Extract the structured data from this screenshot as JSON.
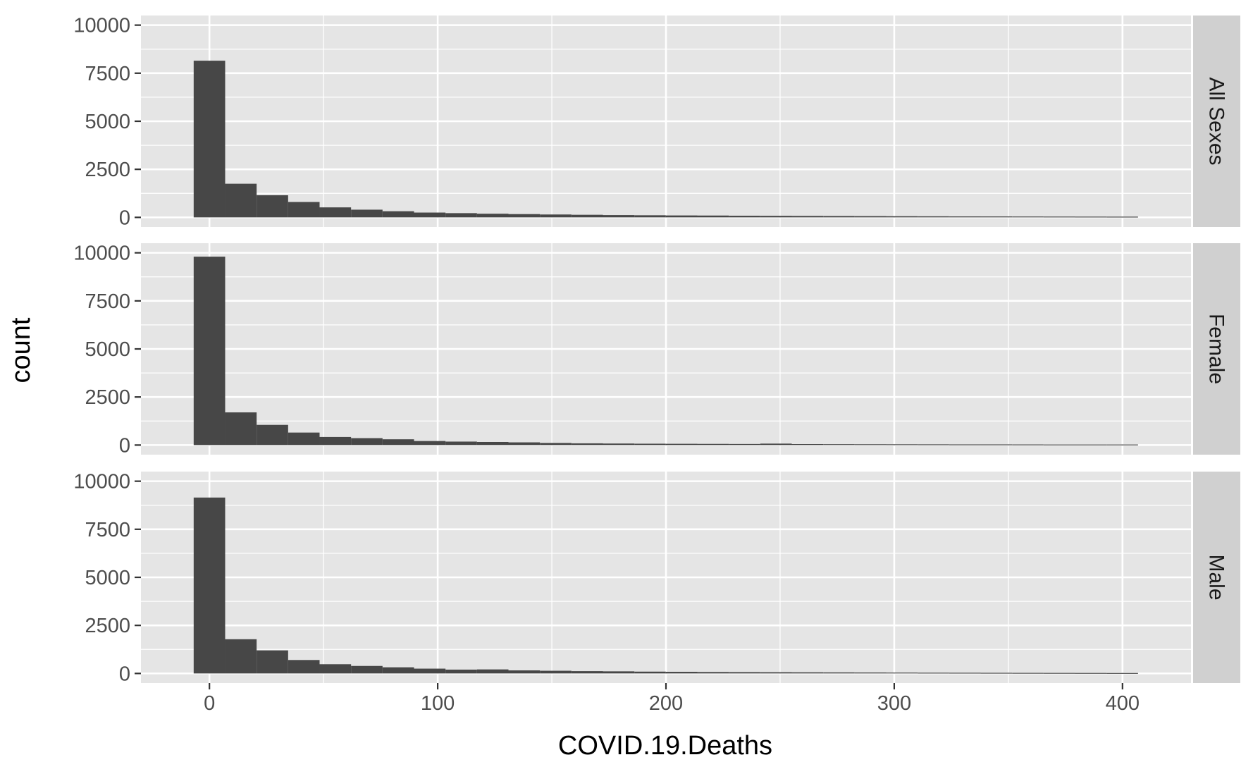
{
  "chart_data": {
    "type": "bar",
    "subtype": "faceted-histogram",
    "facet_direction": "rows",
    "xlabel": "COVID.19.Deaths",
    "ylabel": "count",
    "xlim": [
      -30,
      430
    ],
    "ylim": [
      -500,
      10500
    ],
    "x_ticks": [
      0,
      100,
      200,
      300,
      400
    ],
    "x_tick_labels": [
      "0",
      "100",
      "200",
      "300",
      "400"
    ],
    "y_ticks": [
      0,
      2500,
      5000,
      7500,
      10000
    ],
    "y_tick_labels": [
      "0",
      "2500",
      "5000",
      "7500",
      "10000"
    ],
    "grid": true,
    "bin_width": 13.79,
    "bin_start": -6.9,
    "colors": {
      "panel_background": "#e5e5e5",
      "grid_major": "#ffffff",
      "bar_fill": "#474747",
      "strip_background": "#d0d0d0",
      "tick_color": "#333333"
    },
    "facets": [
      {
        "label": "All Sexes",
        "values": [
          8150,
          1750,
          1150,
          800,
          520,
          400,
          320,
          250,
          220,
          190,
          170,
          150,
          135,
          120,
          110,
          100,
          95,
          85,
          80,
          75,
          70,
          65,
          60,
          55,
          50,
          48,
          45,
          42,
          40,
          38
        ]
      },
      {
        "label": "Female",
        "values": [
          9800,
          1700,
          1050,
          650,
          420,
          360,
          300,
          210,
          180,
          160,
          140,
          110,
          90,
          80,
          70,
          65,
          60,
          55,
          75,
          50,
          45,
          42,
          40,
          38,
          35,
          35,
          33,
          30,
          30,
          30
        ]
      },
      {
        "label": "Male",
        "values": [
          9150,
          1780,
          1200,
          700,
          480,
          390,
          320,
          250,
          200,
          210,
          160,
          140,
          120,
          110,
          95,
          85,
          75,
          70,
          65,
          60,
          55,
          50,
          45,
          40,
          38,
          35,
          32,
          30,
          28,
          25
        ]
      }
    ]
  }
}
